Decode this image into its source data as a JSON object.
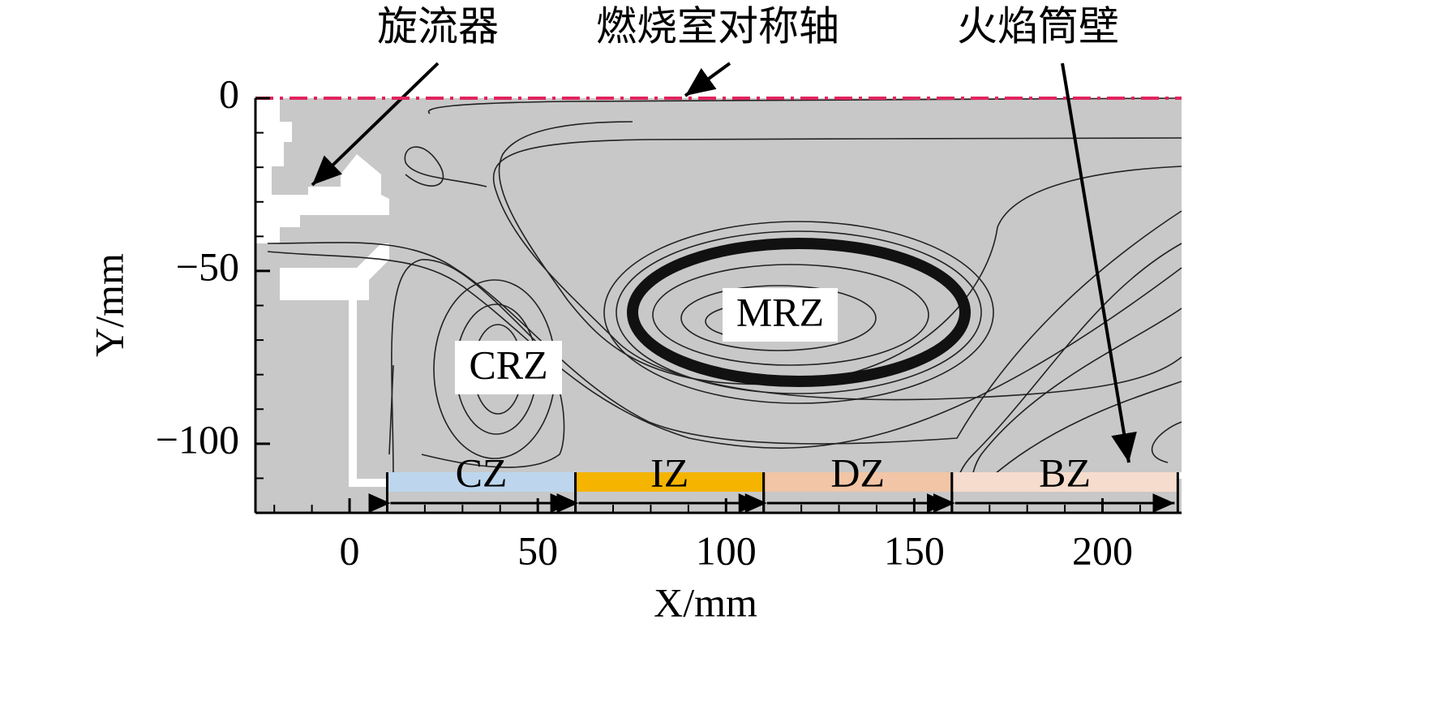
{
  "chart_data": {
    "type": "streamline",
    "xlabel": "X/mm",
    "ylabel": "Y/mm",
    "xlim": [
      -25,
      221
    ],
    "ylim": [
      -120,
      0
    ],
    "xticks": [
      0,
      50,
      100,
      150,
      200
    ],
    "yticks": [
      {
        "value": 0,
        "label": "0"
      },
      {
        "value": -50,
        "label": "−50"
      },
      {
        "value": -100,
        "label": "−100"
      }
    ],
    "xminorticks": [
      -20,
      -10,
      10,
      20,
      30,
      40,
      60,
      70,
      80,
      90,
      110,
      120,
      130,
      140,
      160,
      170,
      180,
      190,
      210,
      220
    ],
    "yminorticks": [
      -10,
      -20,
      -30,
      -40,
      -60,
      -70,
      -80,
      -90,
      -110
    ],
    "background_color": "#c8c8c8",
    "symmetry_axis_color": "#e0245e",
    "zones": [
      {
        "label": "CZ",
        "range": [
          10,
          60
        ],
        "color": "#bdd6ee"
      },
      {
        "label": "IZ",
        "range": [
          60,
          110
        ],
        "color": "#f4b400"
      },
      {
        "label": "DZ",
        "range": [
          110,
          160
        ],
        "color": "#f2c5a6"
      },
      {
        "label": "BZ",
        "range": [
          160,
          220
        ],
        "color": "#f6dccd"
      }
    ],
    "region_labels": [
      "MRZ",
      "CRZ"
    ],
    "annotations": [
      "旋流器",
      "燃烧室对称轴",
      "火焰筒壁"
    ]
  }
}
